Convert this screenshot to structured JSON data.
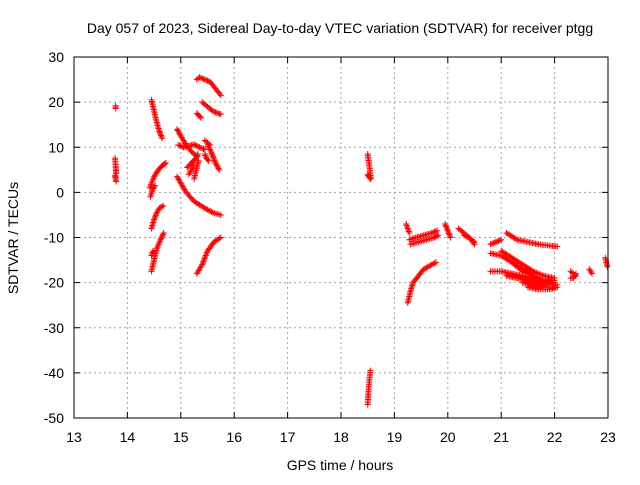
{
  "chart_data": {
    "type": "scatter",
    "title": "Day 057 of 2023, Sidereal Day-to-day VTEC variation (SDTVAR) for receiver ptgg",
    "xlabel": "GPS time / hours",
    "ylabel": "SDTVAR / TECUs",
    "xlim": [
      13,
      23
    ],
    "ylim": [
      -50,
      30
    ],
    "xticks": [
      "13",
      "14",
      "15",
      "16",
      "17",
      "18",
      "19",
      "20",
      "21",
      "22",
      "23"
    ],
    "yticks": [
      "-50",
      "-40",
      "-30",
      "-20",
      "-10",
      "0",
      "10",
      "20",
      "30"
    ],
    "grid": true,
    "marker": "plus",
    "marker_color": "#ff0000",
    "segments": [
      {
        "x": [
          13.78,
          13.78
        ],
        "y": [
          19.2,
          18.6
        ]
      },
      {
        "x": [
          13.77,
          13.78,
          13.79
        ],
        "y": [
          7.6,
          5.8,
          4.2
        ]
      },
      {
        "x": [
          13.77,
          13.78,
          13.79
        ],
        "y": [
          3.8,
          3.0,
          2.4
        ]
      },
      {
        "x": [
          14.45,
          14.5,
          14.55,
          14.6,
          14.65
        ],
        "y": [
          20.5,
          18.0,
          15.5,
          13.5,
          12.0
        ]
      },
      {
        "x": [
          14.42,
          14.5,
          14.58,
          14.66,
          14.72
        ],
        "y": [
          1.0,
          3.5,
          5.0,
          6.0,
          6.5
        ]
      },
      {
        "x": [
          14.45,
          14.5,
          14.55,
          14.6,
          14.67
        ],
        "y": [
          -8.0,
          -6.0,
          -4.5,
          -3.5,
          -3.0
        ]
      },
      {
        "x": [
          14.43,
          14.47,
          14.52
        ],
        "y": [
          -1.0,
          0.5,
          1.5
        ]
      },
      {
        "x": [
          14.45,
          14.5,
          14.55,
          14.62,
          14.68
        ],
        "y": [
          -17.5,
          -15.0,
          -12.5,
          -10.5,
          -9.0
        ]
      },
      {
        "x": [
          14.45,
          14.48
        ],
        "y": [
          -14.0,
          -13.0
        ]
      },
      {
        "x": [
          14.93,
          15.0,
          15.1,
          15.2,
          15.3
        ],
        "y": [
          14.0,
          12.5,
          10.5,
          9.0,
          8.0
        ]
      },
      {
        "x": [
          14.95,
          15.05,
          15.15,
          15.25,
          15.35,
          15.45
        ],
        "y": [
          10.5,
          10.0,
          10.3,
          10.6,
          10.0,
          9.5
        ]
      },
      {
        "x": [
          15.12,
          15.2,
          15.28,
          15.32
        ],
        "y": [
          5.5,
          6.5,
          7.5,
          8.5
        ]
      },
      {
        "x": [
          15.25,
          15.28,
          15.31,
          15.33
        ],
        "y": [
          3.0,
          4.5,
          6.0,
          7.0
        ]
      },
      {
        "x": [
          15.15,
          15.2,
          15.25
        ],
        "y": [
          4.0,
          5.0,
          6.0
        ]
      },
      {
        "x": [
          14.93,
          15.1,
          15.25,
          15.45,
          15.6,
          15.75
        ],
        "y": [
          3.5,
          0.0,
          -2.0,
          -3.5,
          -4.5,
          -5.0
        ]
      },
      {
        "x": [
          15.3,
          15.4,
          15.5,
          15.62,
          15.75
        ],
        "y": [
          -18.0,
          -16.0,
          -13.0,
          -11.0,
          -10.0
        ]
      },
      {
        "x": [
          15.3,
          15.35,
          15.45,
          15.55,
          15.65,
          15.75
        ],
        "y": [
          25.0,
          25.5,
          25.0,
          24.5,
          23.0,
          21.5
        ]
      },
      {
        "x": [
          15.3,
          15.34,
          15.38
        ],
        "y": [
          17.5,
          17.0,
          16.5
        ]
      },
      {
        "x": [
          15.4,
          15.5,
          15.6,
          15.7,
          15.75
        ],
        "y": [
          20.0,
          19.0,
          18.0,
          17.5,
          17.3
        ]
      },
      {
        "x": [
          15.45,
          15.5,
          15.55
        ],
        "y": [
          11.5,
          11.0,
          10.5
        ]
      },
      {
        "x": [
          15.5,
          15.55,
          15.6,
          15.65,
          15.72
        ],
        "y": [
          10.5,
          9.5,
          8.0,
          6.5,
          5.0
        ]
      },
      {
        "x": [
          15.45,
          15.48,
          15.52
        ],
        "y": [
          8.5,
          7.5,
          7.0
        ]
      },
      {
        "x": [
          18.5,
          18.53,
          18.56
        ],
        "y": [
          8.5,
          6.0,
          3.0
        ]
      },
      {
        "x": [
          18.5,
          18.52,
          18.55
        ],
        "y": [
          4.0,
          3.5,
          3.0
        ]
      },
      {
        "x": [
          18.5,
          18.52,
          18.55
        ],
        "y": [
          -47.0,
          -43.0,
          -39.5
        ]
      },
      {
        "x": [
          19.25,
          19.3,
          19.35,
          19.45,
          19.55,
          19.7,
          19.78
        ],
        "y": [
          -24.5,
          -22.0,
          -20.0,
          -18.5,
          -17.0,
          -16.0,
          -15.5
        ]
      },
      {
        "x": [
          19.22,
          19.25,
          19.28
        ],
        "y": [
          -7.0,
          -8.0,
          -9.0
        ]
      },
      {
        "x": [
          19.28,
          19.4,
          19.55,
          19.7,
          19.8
        ],
        "y": [
          -10.5,
          -10.0,
          -9.5,
          -9.0,
          -8.5
        ]
      },
      {
        "x": [
          19.3,
          19.45,
          19.6,
          19.75,
          19.82
        ],
        "y": [
          -11.5,
          -11.0,
          -10.5,
          -10.0,
          -9.5
        ]
      },
      {
        "x": [
          19.95,
          20.0,
          20.05
        ],
        "y": [
          -7.0,
          -8.5,
          -10.0
        ]
      },
      {
        "x": [
          20.2,
          20.3,
          20.4,
          20.5
        ],
        "y": [
          -8.0,
          -9.0,
          -10.0,
          -11.0
        ]
      },
      {
        "x": [
          20.3,
          20.4,
          20.5
        ],
        "y": [
          -9.5,
          -10.0,
          -11.5
        ]
      },
      {
        "x": [
          20.8,
          20.9,
          21.0
        ],
        "y": [
          -11.5,
          -11.0,
          -10.5
        ]
      },
      {
        "x": [
          21.1,
          21.3,
          21.5,
          21.7,
          21.9,
          22.05
        ],
        "y": [
          -9.0,
          -10.5,
          -11.0,
          -11.5,
          -11.8,
          -12.0
        ]
      },
      {
        "x": [
          20.8,
          21.0,
          21.2,
          21.4,
          21.6
        ],
        "y": [
          -13.5,
          -14.0,
          -15.5,
          -17.0,
          -18.0
        ]
      },
      {
        "x": [
          21.0,
          21.2,
          21.4,
          21.6,
          21.8,
          22.0
        ],
        "y": [
          -13.0,
          -14.5,
          -16.0,
          -17.5,
          -18.5,
          -19.0
        ]
      },
      {
        "x": [
          21.2,
          21.4,
          21.6,
          21.8,
          22.0
        ],
        "y": [
          -15.5,
          -17.5,
          -18.5,
          -19.5,
          -20.0
        ]
      },
      {
        "x": [
          20.8,
          21.0,
          21.2,
          21.4,
          21.6,
          21.8,
          22.0
        ],
        "y": [
          -17.5,
          -17.5,
          -18.0,
          -18.5,
          -19.0,
          -19.5,
          -19.5
        ]
      },
      {
        "x": [
          21.1,
          21.3,
          21.5,
          21.7,
          21.9,
          22.05
        ],
        "y": [
          -18.5,
          -19.0,
          -19.5,
          -20.0,
          -20.5,
          -20.5
        ]
      },
      {
        "x": [
          21.4,
          21.6,
          21.8,
          22.0
        ],
        "y": [
          -20.0,
          -20.5,
          -21.0,
          -21.0
        ]
      },
      {
        "x": [
          21.5,
          21.7,
          21.9,
          22.05
        ],
        "y": [
          -21.0,
          -21.5,
          -21.5,
          -21.0
        ]
      },
      {
        "x": [
          22.3,
          22.35,
          22.4
        ],
        "y": [
          -17.5,
          -18.0,
          -18.5
        ]
      },
      {
        "x": [
          22.3,
          22.35,
          22.4
        ],
        "y": [
          -19.0,
          -19.0,
          -18.0
        ]
      },
      {
        "x": [
          22.65,
          22.7
        ],
        "y": [
          -17.0,
          -18.0
        ]
      },
      {
        "x": [
          22.95,
          22.97,
          22.99
        ],
        "y": [
          -14.5,
          -15.5,
          -16.5
        ]
      }
    ]
  }
}
